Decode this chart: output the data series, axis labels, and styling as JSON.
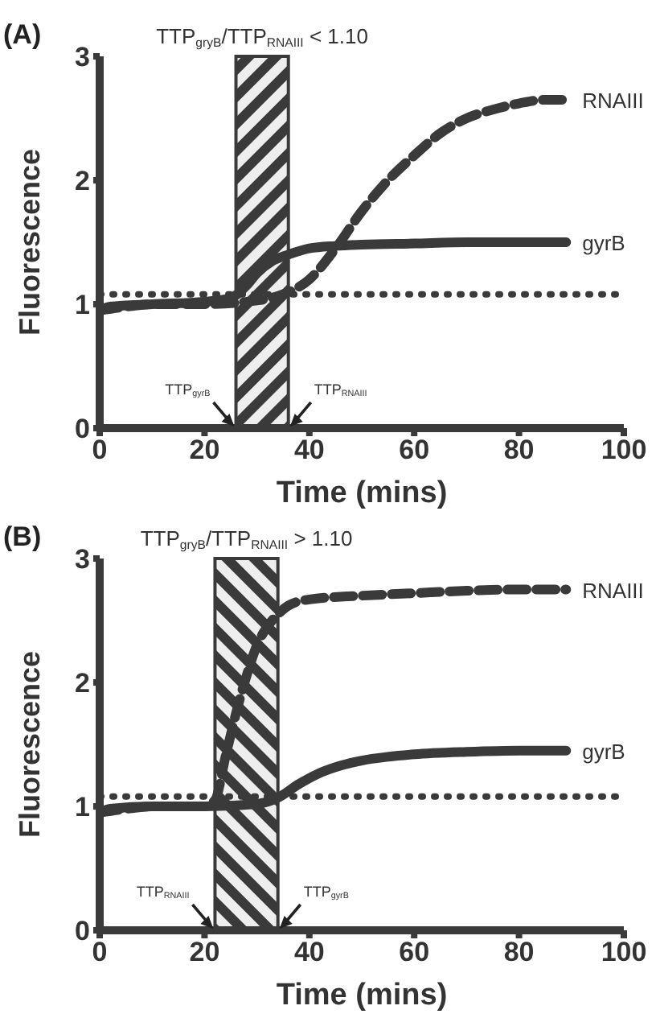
{
  "chart_data": [
    {
      "type": "line",
      "title": "TTP$_{gryB}$/TTP$_{RNAIII}$ < 1.10",
      "xlabel": "Time (mins)",
      "ylabel": "Fluorescence",
      "xlim": [
        0,
        100
      ],
      "ylim": [
        0,
        3
      ],
      "xticks": [
        0,
        20,
        40,
        60,
        80,
        100
      ],
      "yticks": [
        0,
        1,
        2,
        3
      ],
      "marker": "none",
      "annotations": [
        "(A)",
        {
          "text": "TTP$_{gyrB}$",
          "x": 26,
          "y": 0
        },
        {
          "text": "TTP$_{RNAIII}$",
          "x": 36,
          "y": 0
        }
      ],
      "ref_lines": [
        {
          "axis": "y",
          "value": 1.08,
          "color": "#3a3a3a",
          "line_style": "dotted"
        }
      ],
      "bands": [
        {
          "axis": "x",
          "from": 26,
          "to": 36,
          "color": "#3a3a3a"
        }
      ],
      "series": [
        {
          "name": "RNAIII",
          "color": "#3a3a3a",
          "line_style": "dashed",
          "x": [
            0,
            5,
            10,
            20,
            30,
            35,
            40,
            45,
            50,
            55,
            60,
            65,
            70,
            75,
            80,
            85,
            89
          ],
          "values": [
            0.95,
            0.98,
            1.0,
            1.0,
            1.03,
            1.08,
            1.2,
            1.45,
            1.75,
            2.0,
            2.2,
            2.38,
            2.5,
            2.57,
            2.62,
            2.65,
            2.65
          ]
        },
        {
          "name": "gyrB",
          "color": "#3a3a3a",
          "line_style": "solid",
          "x": [
            0,
            2,
            10,
            20,
            25,
            28,
            30,
            33,
            36,
            40,
            45,
            50,
            60,
            70,
            80,
            89
          ],
          "values": [
            0.95,
            0.98,
            1.0,
            1.02,
            1.05,
            1.15,
            1.25,
            1.35,
            1.4,
            1.45,
            1.47,
            1.48,
            1.49,
            1.5,
            1.5,
            1.5
          ]
        }
      ]
    },
    {
      "type": "line",
      "title": "TTP$_{gryB}$/TTP$_{RNAIII}$ > 1.10",
      "xlabel": "Time (mins)",
      "ylabel": "Fluorescence",
      "xlim": [
        0,
        100
      ],
      "ylim": [
        0,
        3
      ],
      "xticks": [
        0,
        20,
        40,
        60,
        80,
        100
      ],
      "yticks": [
        0,
        1,
        2,
        3
      ],
      "marker": "none",
      "annotations": [
        "(B)",
        {
          "text": "TTP$_{RNAIII}$",
          "x": 22,
          "y": 0
        },
        {
          "text": "TTP$_{gyrB}$",
          "x": 34,
          "y": 0
        }
      ],
      "ref_lines": [
        {
          "axis": "y",
          "value": 1.08,
          "color": "#3a3a3a",
          "line_style": "dotted"
        }
      ],
      "bands": [
        {
          "axis": "x",
          "from": 22,
          "to": 34,
          "color": "#3a3a3a"
        }
      ],
      "series": [
        {
          "name": "RNAIII",
          "color": "#3a3a3a",
          "line_style": "dashed",
          "x": [
            0,
            5,
            10,
            20,
            22,
            24,
            26,
            28,
            30,
            32,
            34,
            36,
            40,
            50,
            60,
            70,
            80,
            89
          ],
          "values": [
            0.95,
            0.98,
            1.0,
            1.0,
            1.05,
            1.4,
            1.75,
            2.05,
            2.3,
            2.45,
            2.55,
            2.62,
            2.67,
            2.7,
            2.72,
            2.74,
            2.75,
            2.75
          ]
        },
        {
          "name": "gyrB",
          "color": "#3a3a3a",
          "line_style": "solid",
          "x": [
            0,
            2,
            10,
            20,
            30,
            34,
            38,
            42,
            46,
            50,
            55,
            60,
            70,
            80,
            89
          ],
          "values": [
            0.95,
            0.98,
            1.0,
            1.0,
            1.02,
            1.07,
            1.18,
            1.27,
            1.33,
            1.37,
            1.4,
            1.42,
            1.44,
            1.45,
            1.45
          ]
        }
      ]
    }
  ]
}
